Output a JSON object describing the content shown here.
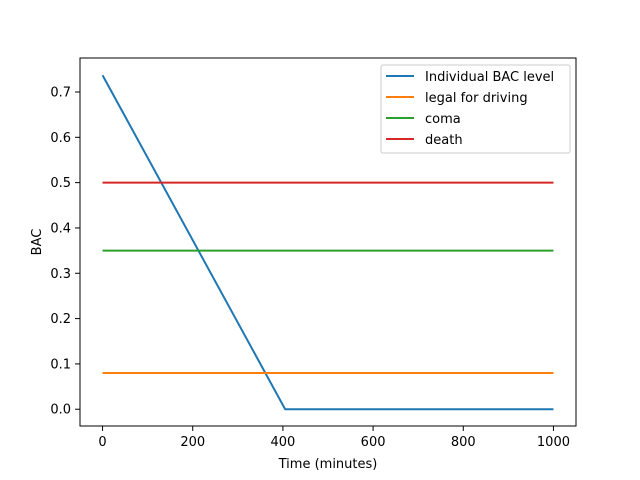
{
  "chart_data": {
    "type": "line",
    "title": "",
    "xlabel": "Time (minutes)",
    "ylabel": "BAC",
    "xlim": [
      -50,
      1050
    ],
    "ylim": [
      -0.037,
      0.775
    ],
    "xticks": [
      0,
      200,
      400,
      600,
      800,
      1000
    ],
    "yticks": [
      0.0,
      0.1,
      0.2,
      0.3,
      0.4,
      0.5,
      0.6,
      0.7
    ],
    "xtick_labels": [
      "0",
      "200",
      "400",
      "600",
      "800",
      "1000"
    ],
    "ytick_labels": [
      "0.0",
      "0.1",
      "0.2",
      "0.3",
      "0.4",
      "0.5",
      "0.6",
      "0.7"
    ],
    "grid": false,
    "legend_position": "top-right",
    "series": [
      {
        "name": "Individual BAC level",
        "color": "#1f77b4",
        "x": [
          0,
          405,
          1000
        ],
        "y": [
          0.737,
          0.0,
          0.0
        ]
      },
      {
        "name": "legal for driving",
        "color": "#ff7f0e",
        "x": [
          0,
          1000
        ],
        "y": [
          0.08,
          0.08
        ]
      },
      {
        "name": "coma",
        "color": "#2ca02c",
        "x": [
          0,
          1000
        ],
        "y": [
          0.35,
          0.35
        ]
      },
      {
        "name": "death",
        "color": "#d62728",
        "x": [
          0,
          1000
        ],
        "y": [
          0.5,
          0.5
        ]
      }
    ]
  }
}
